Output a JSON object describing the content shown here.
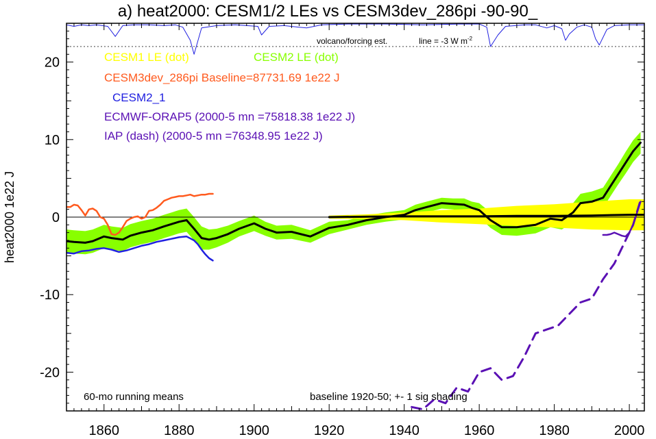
{
  "chart_data": {
    "type": "line",
    "title": "a) heat2000: CESM1/2 LEs vs CESM3dev_286pi -90-90_",
    "ylabel": "heat2000 1e22 J",
    "xlim": [
      1850,
      2004
    ],
    "ylim": [
      -25,
      25
    ],
    "xticks": [
      1860,
      1880,
      1900,
      1920,
      1940,
      1960,
      1980,
      2000
    ],
    "yticks": [
      -20,
      -10,
      0,
      10,
      20
    ],
    "volcano_label": "volcano/forcing est.",
    "volcano_line_label": "line = -3 W m",
    "volcano_line_unit_sup": "-2",
    "annotations": {
      "bottom_left": "60-mo running means",
      "bottom_right": "baseline 1920-50; +- 1 sig shading"
    },
    "legend": [
      {
        "text": "CESM1 LE (dot)",
        "color": "#ffff00"
      },
      {
        "text": "CESM2 LE (dot)",
        "color": "#88ff00"
      },
      {
        "text": "CESM3dev_286pi Baseline=87731.69 1e22 J",
        "color": "#ff5a1e"
      },
      {
        "text": "CESM2_1",
        "color": "#2020e0"
      },
      {
        "text": "ECMWF-ORAP5 (2000-5 mn =75818.38 1e22 J)",
        "color": "#5a10b4"
      },
      {
        "text": "IAP (dash) (2000-5 mn =76348.95 1e22 J)",
        "color": "#5a10b4"
      }
    ],
    "colors": {
      "cesm1_band": "#ffff00",
      "cesm2_band": "#88ff00",
      "ensemble_mean": "#000000",
      "cesm3dev": "#ff5a1e",
      "cesm2_1": "#2020e0",
      "obs": "#5a10b4",
      "volcano": "#2020e0"
    },
    "series": [
      {
        "key": "cesm2_mean",
        "x": [
          1850,
          1852,
          1855,
          1857,
          1860,
          1862,
          1865,
          1867,
          1870,
          1873,
          1876,
          1878,
          1880,
          1882,
          1884,
          1886,
          1888,
          1890,
          1893,
          1896,
          1900,
          1903,
          1906,
          1910,
          1915,
          1920,
          1925,
          1930,
          1935,
          1940,
          1943,
          1946,
          1950,
          1953,
          1956,
          1958,
          1960,
          1963,
          1966,
          1970,
          1975,
          1979,
          1982,
          1985,
          1987,
          1990,
          1993,
          1995,
          1997,
          1999,
          2001,
          2003
        ],
        "y": [
          -3.1,
          -3.2,
          -3.3,
          -3.1,
          -2.5,
          -2.7,
          -2.9,
          -2.4,
          -2.0,
          -1.7,
          -1.2,
          -0.9,
          -0.6,
          -0.4,
          -1.5,
          -2.7,
          -2.9,
          -2.7,
          -2.2,
          -1.5,
          -0.8,
          -1.5,
          -2.0,
          -1.9,
          -2.5,
          -1.4,
          -1.0,
          -0.4,
          0.0,
          0.3,
          0.9,
          1.3,
          1.8,
          1.7,
          1.6,
          1.2,
          0.9,
          -0.4,
          -1.3,
          -1.3,
          -1.0,
          -0.2,
          -0.4,
          0.6,
          1.8,
          2.0,
          2.5,
          4.0,
          5.5,
          7.0,
          8.5,
          9.6
        ],
        "band": [
          1.5,
          1.5,
          1.5,
          1.5,
          1.5,
          1.5,
          1.5,
          1.5,
          1.5,
          1.5,
          1.5,
          1.5,
          1.5,
          1.5,
          1.5,
          1.5,
          1.3,
          1.2,
          1.1,
          1.0,
          1.0,
          0.9,
          0.9,
          0.9,
          0.8,
          0.8,
          0.6,
          0.6,
          0.6,
          0.6,
          0.7,
          0.7,
          0.7,
          0.7,
          0.8,
          0.8,
          0.9,
          1.0,
          1.0,
          1.1,
          1.1,
          1.1,
          1.2,
          1.2,
          1.2,
          1.3,
          1.3,
          1.3,
          1.3,
          1.4,
          1.4,
          1.4
        ]
      },
      {
        "key": "cesm1_mean",
        "x": [
          1920,
          1930,
          1940,
          1950,
          1960,
          1970,
          1980,
          1990,
          2000,
          2004
        ],
        "y": [
          0.0,
          0.05,
          0.1,
          0.1,
          0.1,
          0.15,
          0.15,
          0.2,
          0.3,
          0.3
        ],
        "band": [
          0.2,
          0.3,
          0.5,
          0.8,
          1.0,
          1.3,
          1.5,
          1.8,
          2.0,
          2.0
        ]
      },
      {
        "key": "cesm3dev",
        "x": [
          1850,
          1851,
          1852,
          1853,
          1854,
          1855,
          1856,
          1857,
          1858,
          1859,
          1860,
          1861,
          1862,
          1863,
          1864,
          1865,
          1866,
          1867,
          1868,
          1869,
          1870,
          1871,
          1872,
          1873,
          1874,
          1875,
          1876,
          1877,
          1878,
          1879,
          1880,
          1881,
          1882,
          1883,
          1884,
          1885,
          1886,
          1887,
          1888,
          1889
        ],
        "y": [
          1.3,
          1.3,
          1.6,
          1.5,
          0.9,
          0.2,
          1.0,
          1.1,
          0.8,
          0.0,
          -0.2,
          -1.0,
          -2.2,
          -2.3,
          -2.0,
          -1.3,
          -0.5,
          -0.2,
          0.0,
          0.1,
          -0.2,
          0.0,
          0.8,
          0.9,
          1.2,
          1.6,
          2.1,
          2.3,
          2.5,
          2.6,
          2.7,
          2.7,
          2.8,
          2.9,
          2.7,
          2.8,
          2.9,
          2.9,
          3.0,
          3.0
        ]
      },
      {
        "key": "cesm2_1",
        "x": [
          1850,
          1852,
          1854,
          1856,
          1858,
          1860,
          1862,
          1864,
          1866,
          1868,
          1870,
          1872,
          1874,
          1876,
          1878,
          1880,
          1882,
          1884,
          1885,
          1886,
          1887,
          1888,
          1889
        ],
        "y": [
          -4.6,
          -4.7,
          -4.4,
          -4.3,
          -4.1,
          -4.0,
          -4.2,
          -4.5,
          -4.3,
          -4.0,
          -3.7,
          -3.5,
          -3.2,
          -3.0,
          -2.8,
          -2.6,
          -2.5,
          -3.0,
          -3.5,
          -4.2,
          -4.8,
          -5.3,
          -5.6
        ]
      },
      {
        "key": "ecmwf_orap5",
        "x": [
          1993,
          1994,
          1995,
          1996,
          1997,
          1998,
          1999,
          2000,
          2001,
          2002,
          2003
        ],
        "y": [
          -2.3,
          -2.3,
          -2.2,
          -2.0,
          -2.2,
          -2.4,
          -2.5,
          -2.0,
          -1.0,
          0.5,
          2.0
        ]
      },
      {
        "key": "iap",
        "x": [
          1942,
          1945,
          1948,
          1951,
          1954,
          1957,
          1960,
          1963,
          1966,
          1969,
          1972,
          1975,
          1978,
          1981,
          1984,
          1987,
          1990,
          1993,
          1996,
          1999,
          2001,
          2003
        ],
        "y": [
          -24.5,
          -24.8,
          -23.5,
          -24.0,
          -22.0,
          -22.5,
          -20.0,
          -19.5,
          -21.0,
          -20.5,
          -18.0,
          -15.0,
          -14.5,
          -14.0,
          -12.5,
          -11.0,
          -10.5,
          -8.0,
          -6.0,
          -3.0,
          -1.0,
          2.2
        ]
      },
      {
        "key": "volcano",
        "x": [
          1850,
          1852,
          1854,
          1856,
          1858,
          1861,
          1863,
          1865,
          1868,
          1872,
          1876,
          1879,
          1881,
          1883,
          1884,
          1886,
          1890,
          1895,
          1901,
          1902,
          1904,
          1908,
          1912,
          1914,
          1918,
          1925,
          1935,
          1945,
          1955,
          1960,
          1962,
          1963,
          1965,
          1967,
          1972,
          1975,
          1978,
          1980,
          1982,
          1983,
          1984,
          1986,
          1988,
          1990,
          1991,
          1992,
          1994,
          1996,
          2000,
          2004
        ],
        "y": [
          24.8,
          24.6,
          24.8,
          24.7,
          24.8,
          24.6,
          23.3,
          24.7,
          24.8,
          24.8,
          24.7,
          24.8,
          24.5,
          22.8,
          21.0,
          24.4,
          24.7,
          24.8,
          24.6,
          23.5,
          24.6,
          24.7,
          24.5,
          24.4,
          24.8,
          24.9,
          24.9,
          24.8,
          24.9,
          24.9,
          24.5,
          22.0,
          23.5,
          24.6,
          24.8,
          24.8,
          24.4,
          24.7,
          24.3,
          22.8,
          23.6,
          24.5,
          24.8,
          24.5,
          23.0,
          22.2,
          24.2,
          24.7,
          24.8,
          24.8
        ]
      }
    ]
  }
}
